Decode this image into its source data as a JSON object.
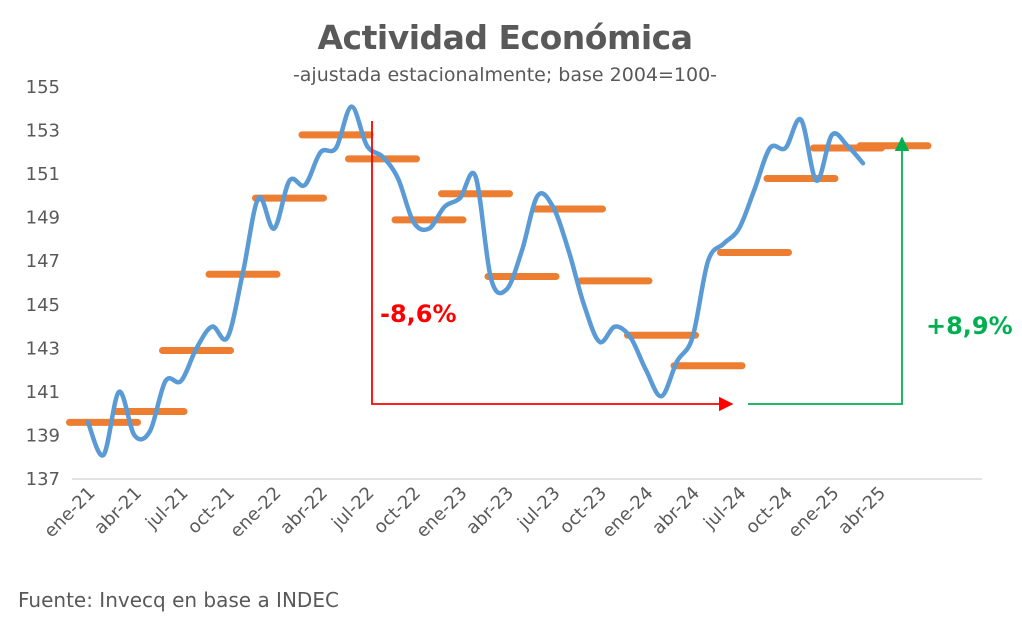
{
  "title": "Actividad Económica",
  "subtitle": "-ajustada estacionalmente; base 2004=100-",
  "source": "Fuente: Invecq en base a INDEC",
  "colors": {
    "monthly": "#5b9bd5",
    "quarterly": "#ed7d31",
    "drop": "#ff0000",
    "rise": "#00b050",
    "axis": "#d9d9d9",
    "text": "#595959"
  },
  "chart_data": {
    "type": "line",
    "ylim": [
      137,
      155
    ],
    "yticks": [
      137,
      139,
      141,
      143,
      145,
      147,
      149,
      151,
      153,
      155
    ],
    "xtick_labels": [
      "ene-21",
      "abr-21",
      "jul-21",
      "oct-21",
      "ene-22",
      "abr-22",
      "jul-22",
      "oct-22",
      "ene-23",
      "abr-23",
      "jul-23",
      "oct-23",
      "ene-24",
      "abr-24",
      "jul-24",
      "oct-24",
      "ene-25",
      "abr-25"
    ],
    "monthly_series": {
      "values": [
        139.6,
        138.1,
        141.0,
        139.0,
        139.2,
        141.5,
        141.5,
        143.0,
        144.0,
        143.5,
        146.5,
        149.9,
        148.5,
        150.7,
        150.5,
        152.0,
        152.2,
        154.1,
        152.3,
        151.8,
        150.8,
        148.8,
        148.5,
        149.5,
        149.9,
        150.9,
        146.2,
        145.7,
        147.5,
        150.0,
        149.5,
        147.5,
        145.0,
        143.3,
        144.0,
        143.5,
        142.0,
        140.8,
        142.4,
        143.5,
        147.0,
        147.8,
        148.5,
        150.3,
        152.2,
        152.2,
        153.5,
        150.7,
        152.8,
        152.3,
        151.5
      ]
    },
    "quarterly_series": {
      "values": [
        139.6,
        140.1,
        142.9,
        146.4,
        149.9,
        152.8,
        151.7,
        148.9,
        150.1,
        146.3,
        149.4,
        146.1,
        143.6,
        142.2,
        147.4,
        150.8,
        152.2,
        152.3
      ]
    },
    "annotations": {
      "drop_label": "-8,6%",
      "rise_label": "+8,9%"
    }
  }
}
